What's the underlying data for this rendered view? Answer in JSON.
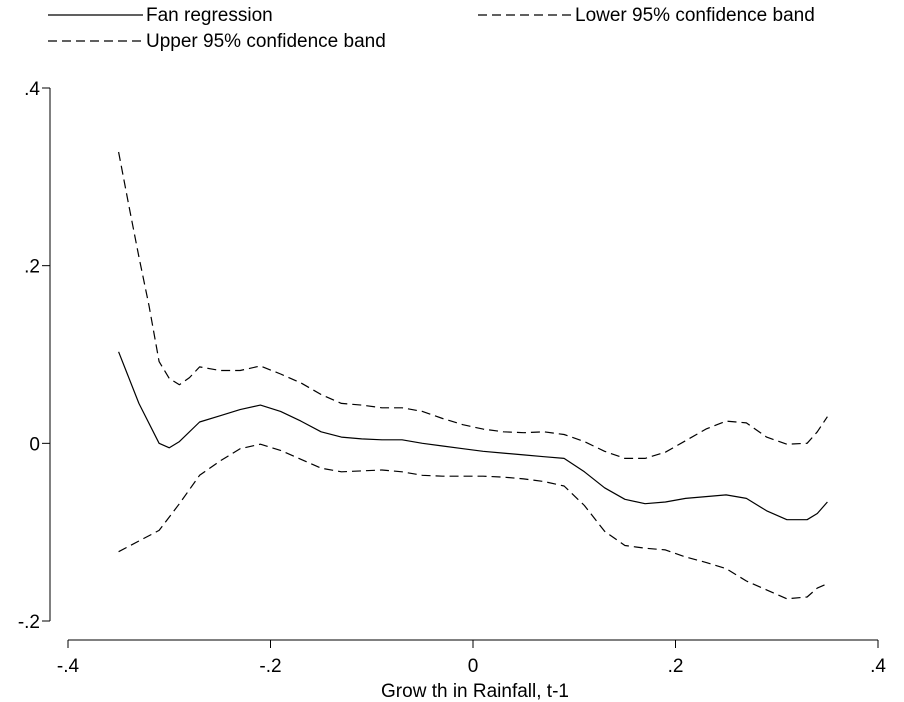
{
  "chart_data": {
    "type": "line",
    "title": "",
    "xlabel": "Grow th in Rainfall, t-1",
    "ylabel": "",
    "xlim": [
      -0.4,
      0.4
    ],
    "ylim": [
      -0.2,
      0.4
    ],
    "xticks": [
      -0.4,
      -0.2,
      0,
      0.2,
      0.4
    ],
    "xtick_labels": [
      "-.4",
      "-.2",
      "0",
      ".2",
      ".4"
    ],
    "yticks": [
      -0.2,
      0,
      0.2,
      0.4
    ],
    "ytick_labels": [
      "-.2",
      "0",
      ".2",
      ".4"
    ],
    "grid": false,
    "legend_position": "top",
    "series": [
      {
        "name": "Fan regression",
        "style": "solid",
        "x": [
          -0.35,
          -0.33,
          -0.31,
          -0.3,
          -0.29,
          -0.27,
          -0.25,
          -0.23,
          -0.21,
          -0.19,
          -0.17,
          -0.15,
          -0.13,
          -0.11,
          -0.09,
          -0.07,
          -0.05,
          -0.03,
          -0.01,
          0.01,
          0.03,
          0.05,
          0.07,
          0.09,
          0.11,
          0.13,
          0.15,
          0.17,
          0.19,
          0.21,
          0.23,
          0.25,
          0.27,
          0.29,
          0.31,
          0.33,
          0.34,
          0.35
        ],
        "y": [
          0.103,
          0.045,
          0.0,
          -0.005,
          0.002,
          0.024,
          0.031,
          0.038,
          0.043,
          0.036,
          0.025,
          0.013,
          0.007,
          0.005,
          0.004,
          0.004,
          0.0,
          -0.003,
          -0.006,
          -0.009,
          -0.011,
          -0.013,
          -0.015,
          -0.017,
          -0.032,
          -0.05,
          -0.063,
          -0.068,
          -0.066,
          -0.062,
          -0.06,
          -0.058,
          -0.062,
          -0.076,
          -0.086,
          -0.086,
          -0.079,
          -0.066
        ]
      },
      {
        "name": "Lower 95% confidence band",
        "style": "dashed",
        "x": [
          -0.35,
          -0.33,
          -0.31,
          -0.29,
          -0.27,
          -0.25,
          -0.23,
          -0.21,
          -0.19,
          -0.17,
          -0.15,
          -0.13,
          -0.11,
          -0.09,
          -0.07,
          -0.05,
          -0.03,
          -0.01,
          0.01,
          0.03,
          0.05,
          0.07,
          0.09,
          0.11,
          0.13,
          0.15,
          0.17,
          0.19,
          0.21,
          0.23,
          0.25,
          0.27,
          0.29,
          0.31,
          0.33,
          0.34,
          0.35
        ],
        "y": [
          -0.122,
          -0.11,
          -0.098,
          -0.068,
          -0.036,
          -0.02,
          -0.006,
          -0.001,
          -0.008,
          -0.018,
          -0.028,
          -0.032,
          -0.031,
          -0.03,
          -0.032,
          -0.036,
          -0.037,
          -0.037,
          -0.037,
          -0.038,
          -0.04,
          -0.043,
          -0.048,
          -0.07,
          -0.099,
          -0.115,
          -0.118,
          -0.12,
          -0.128,
          -0.134,
          -0.141,
          -0.155,
          -0.165,
          -0.175,
          -0.173,
          -0.163,
          -0.158
        ]
      },
      {
        "name": "Upper 95% confidence band",
        "style": "dashed",
        "x": [
          -0.35,
          -0.34,
          -0.33,
          -0.32,
          -0.31,
          -0.3,
          -0.29,
          -0.28,
          -0.27,
          -0.26,
          -0.25,
          -0.23,
          -0.21,
          -0.19,
          -0.17,
          -0.15,
          -0.13,
          -0.11,
          -0.09,
          -0.07,
          -0.05,
          -0.03,
          -0.01,
          0.01,
          0.03,
          0.05,
          0.07,
          0.09,
          0.11,
          0.13,
          0.15,
          0.17,
          0.19,
          0.21,
          0.23,
          0.25,
          0.27,
          0.29,
          0.31,
          0.33,
          0.34,
          0.35
        ],
        "y": [
          0.328,
          0.268,
          0.21,
          0.155,
          0.092,
          0.073,
          0.066,
          0.074,
          0.086,
          0.084,
          0.082,
          0.082,
          0.087,
          0.078,
          0.068,
          0.055,
          0.045,
          0.043,
          0.04,
          0.04,
          0.036,
          0.028,
          0.021,
          0.016,
          0.013,
          0.012,
          0.013,
          0.01,
          0.002,
          -0.009,
          -0.017,
          -0.017,
          -0.01,
          0.003,
          0.016,
          0.025,
          0.023,
          0.007,
          -0.001,
          0.0,
          0.013,
          0.03
        ]
      }
    ]
  }
}
